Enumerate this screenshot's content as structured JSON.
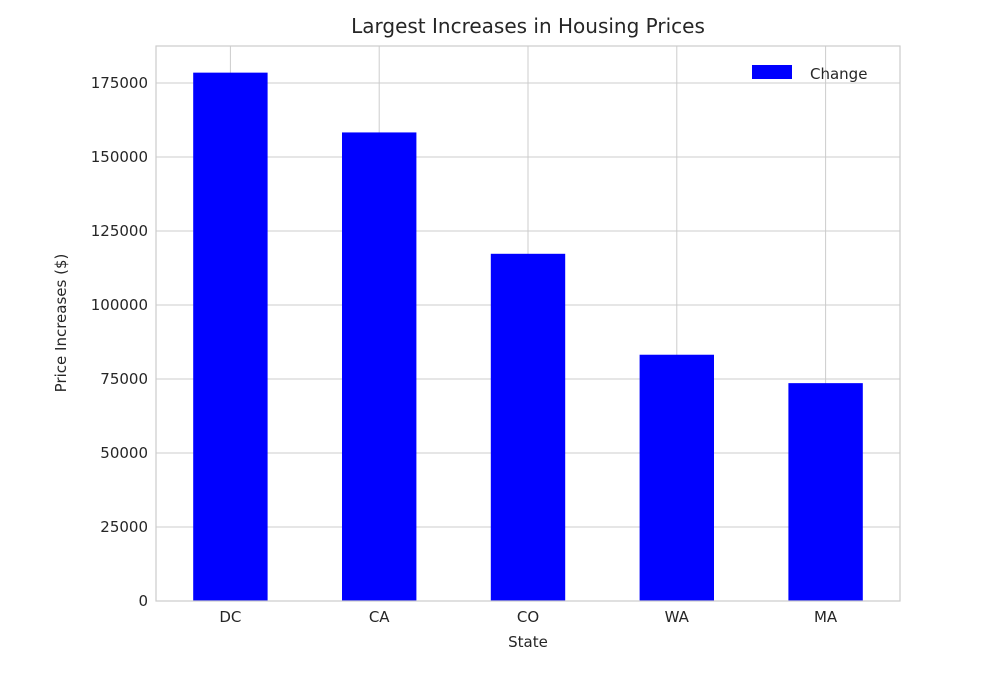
{
  "chart_data": {
    "type": "bar",
    "title": "Largest Increases in Housing Prices",
    "xlabel": "State",
    "ylabel": "Price Increases ($)",
    "categories": [
      "DC",
      "CA",
      "CO",
      "WA",
      "MA"
    ],
    "series": [
      {
        "name": "Change",
        "values": [
          178500,
          158300,
          117300,
          83200,
          73600
        ],
        "color": "#0000ff"
      }
    ],
    "ylim": [
      0,
      187500
    ],
    "yticks": [
      0,
      25000,
      50000,
      75000,
      100000,
      125000,
      150000,
      175000
    ],
    "ytick_labels": [
      "0",
      "25000",
      "50000",
      "75000",
      "100000",
      "125000",
      "150000",
      "175000"
    ],
    "grid": true,
    "legend_position": "top-right"
  },
  "colors": {
    "bar": "#0000ff",
    "grid": "#cccccc",
    "frame": "#cccccc",
    "text": "#262626"
  }
}
